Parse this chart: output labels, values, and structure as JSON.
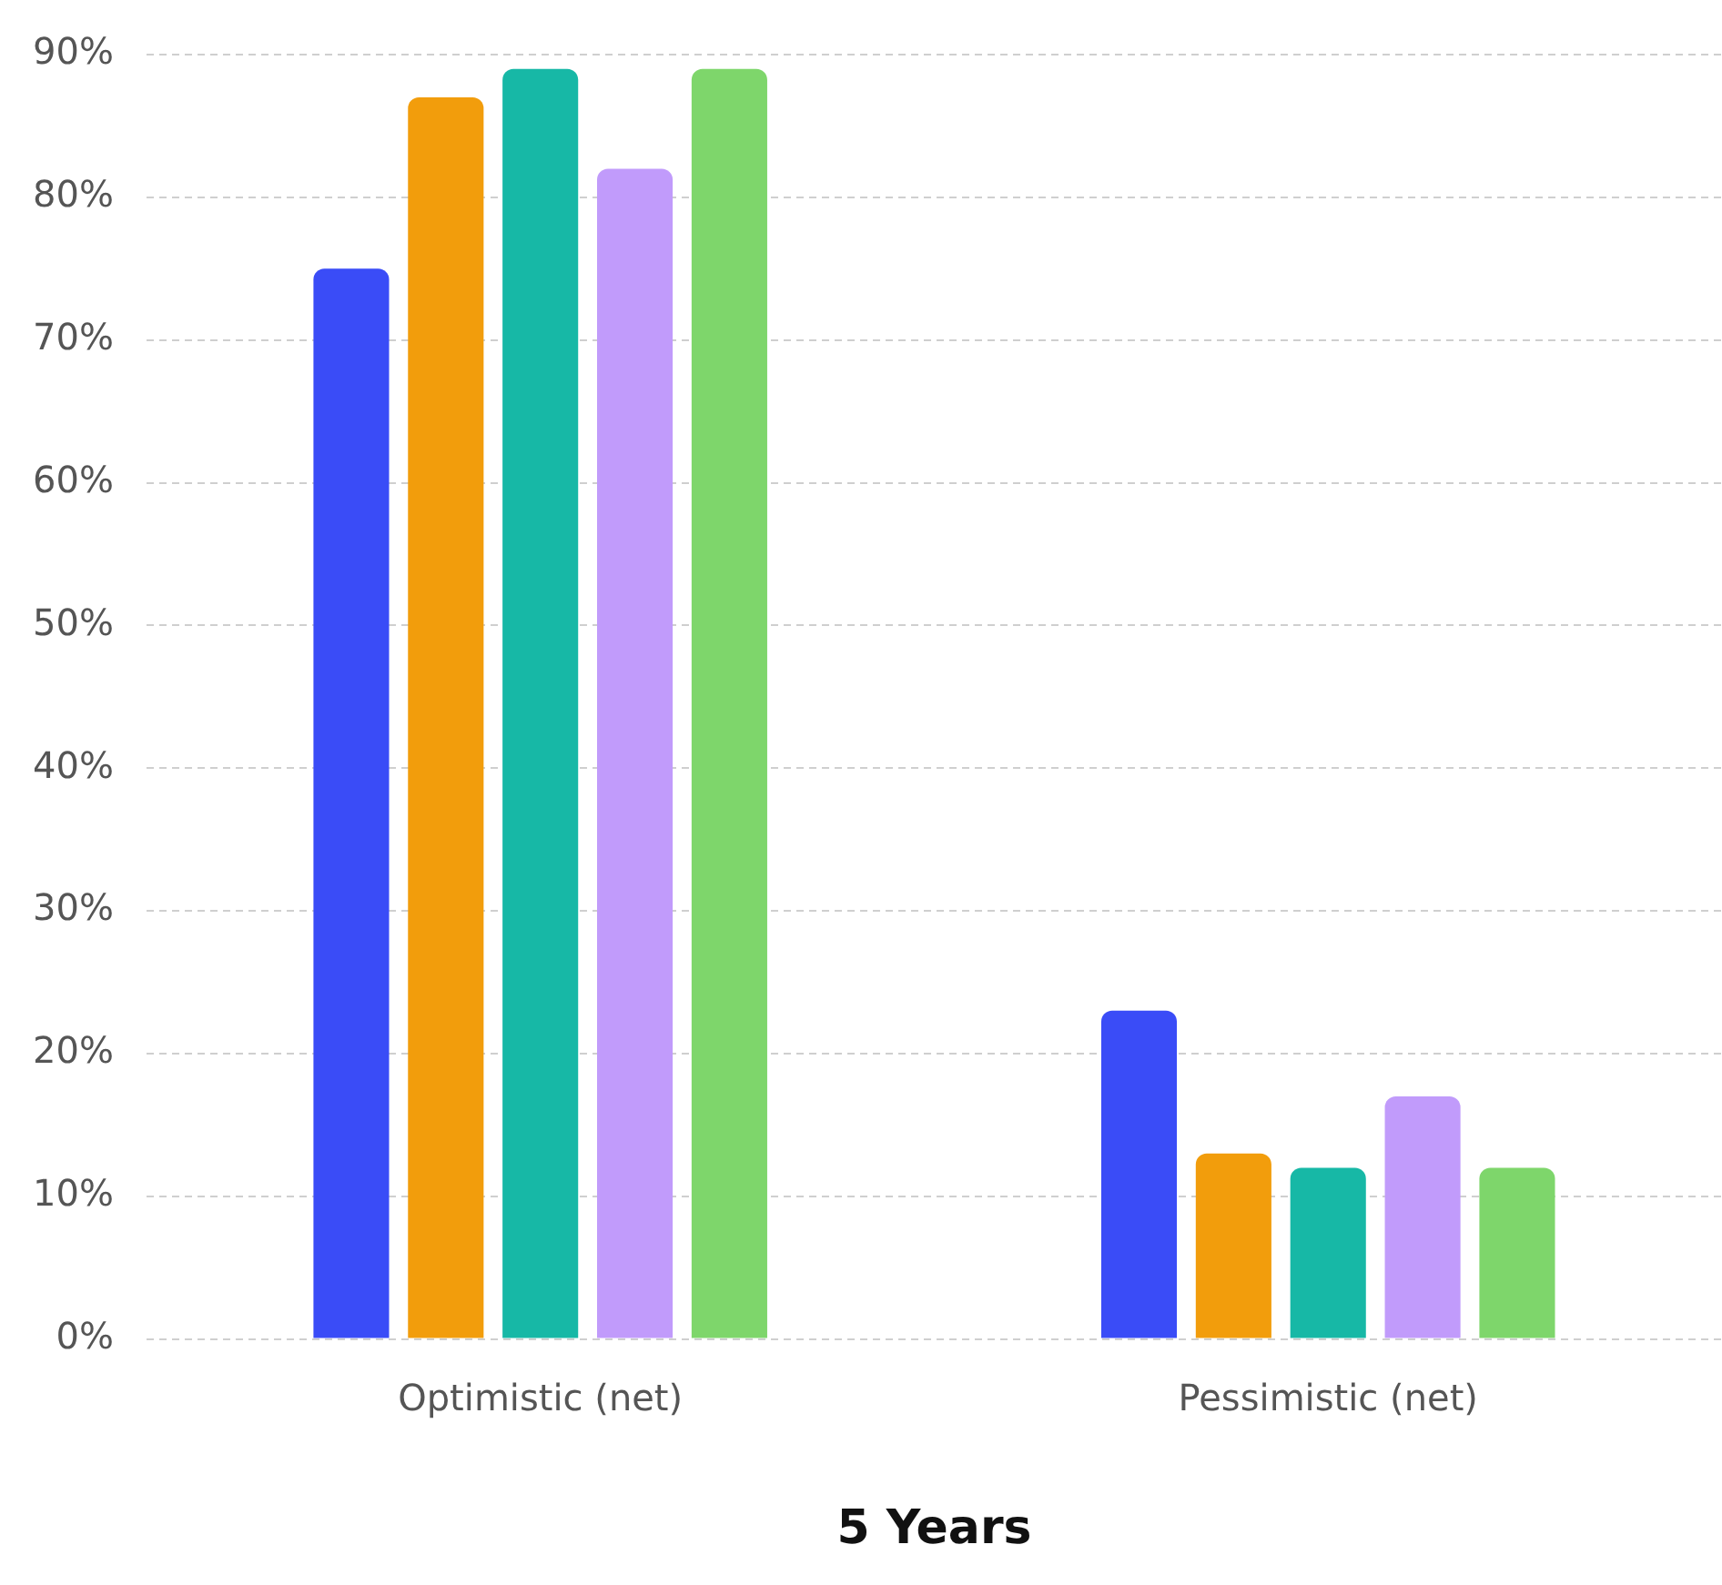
{
  "chart_data": {
    "type": "bar",
    "xlabel": "5 Years",
    "categories": [
      "Optimistic (net)",
      "Pessimistic (net)"
    ],
    "series": [
      {
        "color": "#3a4cf7",
        "values": [
          75,
          23
        ]
      },
      {
        "color": "#f29d0c",
        "values": [
          87,
          13
        ]
      },
      {
        "color": "#17b8a6",
        "values": [
          89,
          12
        ]
      },
      {
        "color": "#c19bfb",
        "values": [
          82,
          17
        ]
      },
      {
        "color": "#7ed66b",
        "values": [
          89,
          12
        ]
      }
    ],
    "ylim": [
      0,
      90
    ],
    "yticks": [
      {
        "value": 0,
        "label": "0%"
      },
      {
        "value": 10,
        "label": "10%"
      },
      {
        "value": 20,
        "label": "20%"
      },
      {
        "value": 30,
        "label": "30%"
      },
      {
        "value": 40,
        "label": "40%"
      },
      {
        "value": 50,
        "label": "50%"
      },
      {
        "value": 60,
        "label": "60%"
      },
      {
        "value": 70,
        "label": "70%"
      },
      {
        "value": 80,
        "label": "80%"
      },
      {
        "value": 90,
        "label": "90%"
      }
    ],
    "grid": "y",
    "legend": false
  }
}
